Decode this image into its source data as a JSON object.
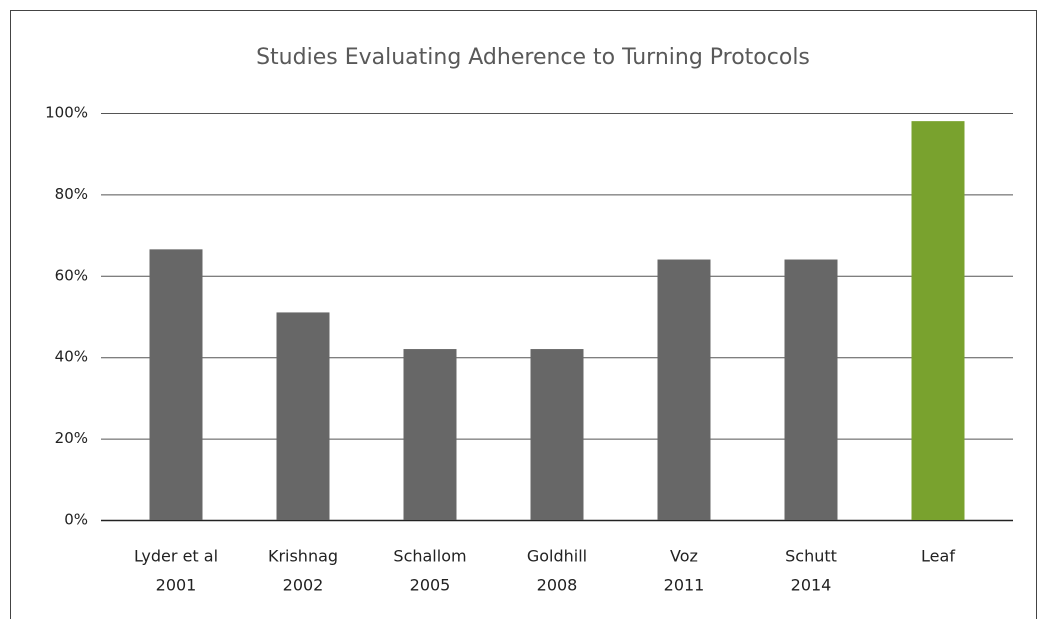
{
  "chart_data": {
    "type": "bar",
    "title": "Studies Evaluating Adherence to Turning Protocols",
    "categories": [
      [
        "Lyder et al",
        "2001"
      ],
      [
        "Krishnag",
        "2002"
      ],
      [
        "Schallom",
        "2005"
      ],
      [
        "Goldhill",
        "2008"
      ],
      [
        "Voz",
        "2011"
      ],
      [
        "Schutt",
        "2014"
      ],
      [
        "Leaf"
      ]
    ],
    "values": [
      66.5,
      51,
      42,
      42,
      64,
      64,
      98
    ],
    "colors": [
      "#676767",
      "#676767",
      "#676767",
      "#676767",
      "#676767",
      "#676767",
      "#79a22e"
    ],
    "ylim": [
      0,
      100
    ],
    "yticks": [
      {
        "value": 0,
        "label": "0%"
      },
      {
        "value": 20,
        "label": "20%"
      },
      {
        "value": 40,
        "label": "40%"
      },
      {
        "value": 60,
        "label": "60%"
      },
      {
        "value": 80,
        "label": "80%"
      },
      {
        "value": 100,
        "label": "100%"
      }
    ],
    "grid": true
  }
}
